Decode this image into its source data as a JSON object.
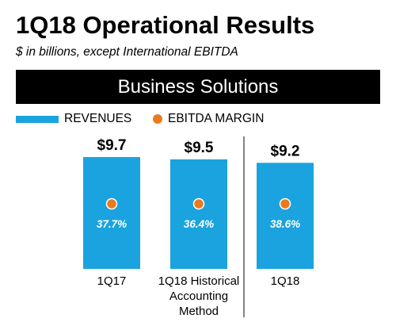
{
  "header": {
    "title": "1Q18 Operational Results",
    "subtitle": "$ in billions, except International EBITDA"
  },
  "section": {
    "label": "Business Solutions",
    "background": "#000000",
    "text_color": "#ffffff"
  },
  "legend": {
    "items": [
      {
        "label": "REVENUES",
        "marker": "bar",
        "color": "#1aa3de"
      },
      {
        "label": "EBITDA MARGIN",
        "marker": "dot",
        "color": "#ea7a1c"
      }
    ]
  },
  "chart_data": {
    "type": "bar",
    "categories": [
      "1Q17",
      "1Q18 Historical Accounting Method",
      "1Q18"
    ],
    "category_lines": [
      [
        "1Q17"
      ],
      [
        "1Q18 Historical",
        "Accounting",
        "Method"
      ],
      [
        "1Q18"
      ]
    ],
    "series": [
      {
        "name": "REVENUES",
        "values": [
          9.7,
          9.5,
          9.2
        ],
        "value_labels": [
          "$9.7",
          "$9.5",
          "$9.2"
        ],
        "color": "#1aa3de"
      },
      {
        "name": "EBITDA MARGIN",
        "values": [
          37.7,
          36.4,
          38.6
        ],
        "value_labels": [
          "37.7%",
          "36.4%",
          "38.6%"
        ],
        "color": "#ea7a1c"
      }
    ],
    "separator_after_index": 1,
    "xlabel": "",
    "ylabel": "",
    "grid": false
  }
}
